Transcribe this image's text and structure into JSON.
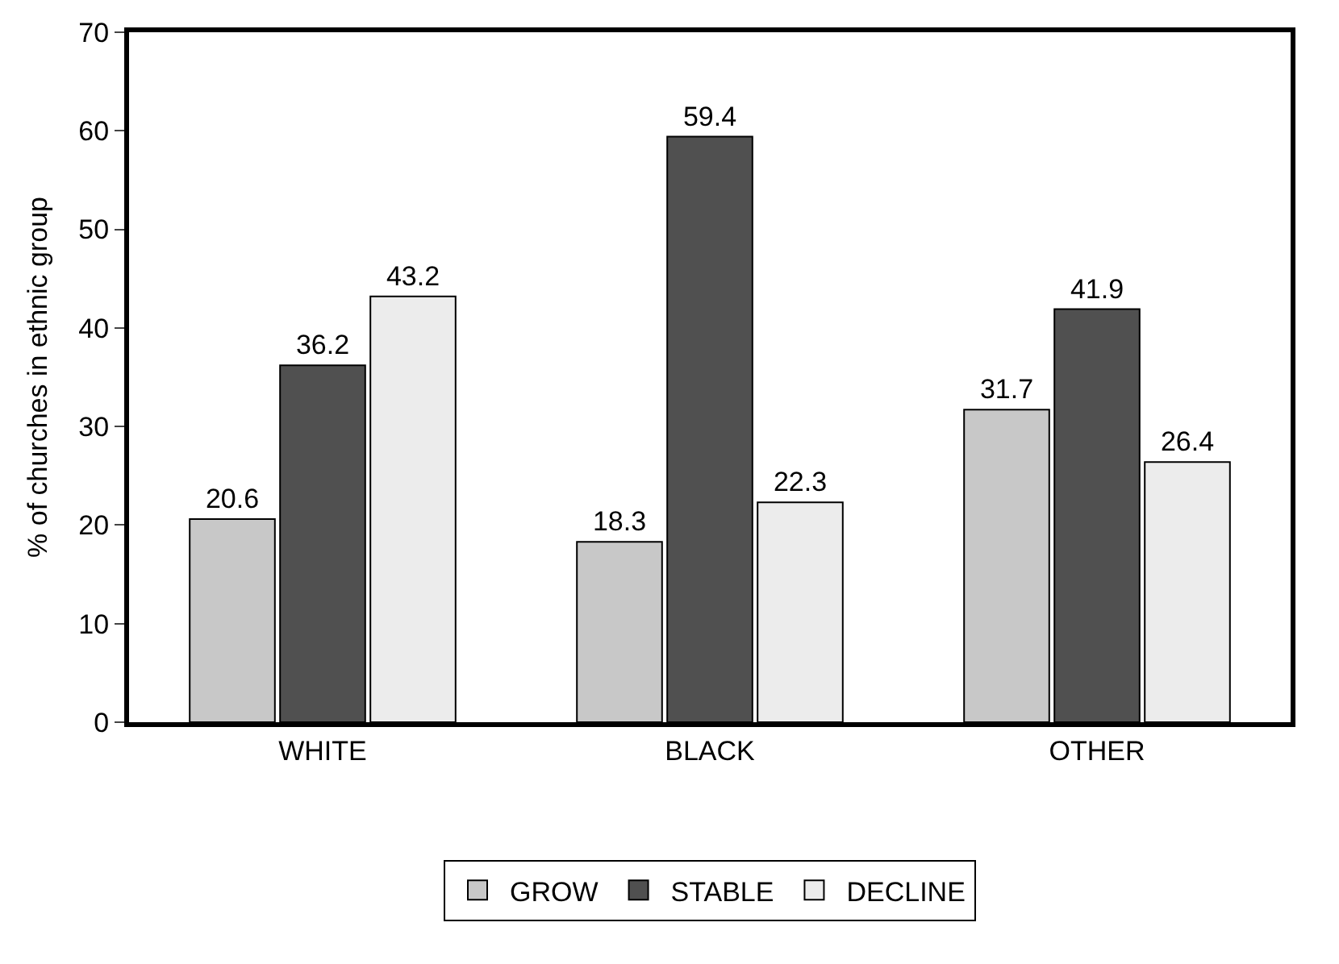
{
  "chart_data": {
    "type": "bar",
    "ylabel": "% of churches in ethnic group",
    "categories": [
      "WHITE",
      "BLACK",
      "OTHER"
    ],
    "series": [
      {
        "name": "GROW",
        "color": "#c8c8c8",
        "values": [
          20.6,
          18.3,
          31.7
        ]
      },
      {
        "name": "STABLE",
        "color": "#505050",
        "values": [
          36.2,
          59.4,
          41.9
        ]
      },
      {
        "name": "DECLINE",
        "color": "#ececec",
        "values": [
          43.2,
          22.3,
          26.4
        ]
      }
    ],
    "ylim": [
      0,
      70
    ],
    "yticks": [
      0,
      10,
      20,
      30,
      40,
      50,
      60,
      70
    ],
    "data_labels": true,
    "legend": "bottom"
  }
}
